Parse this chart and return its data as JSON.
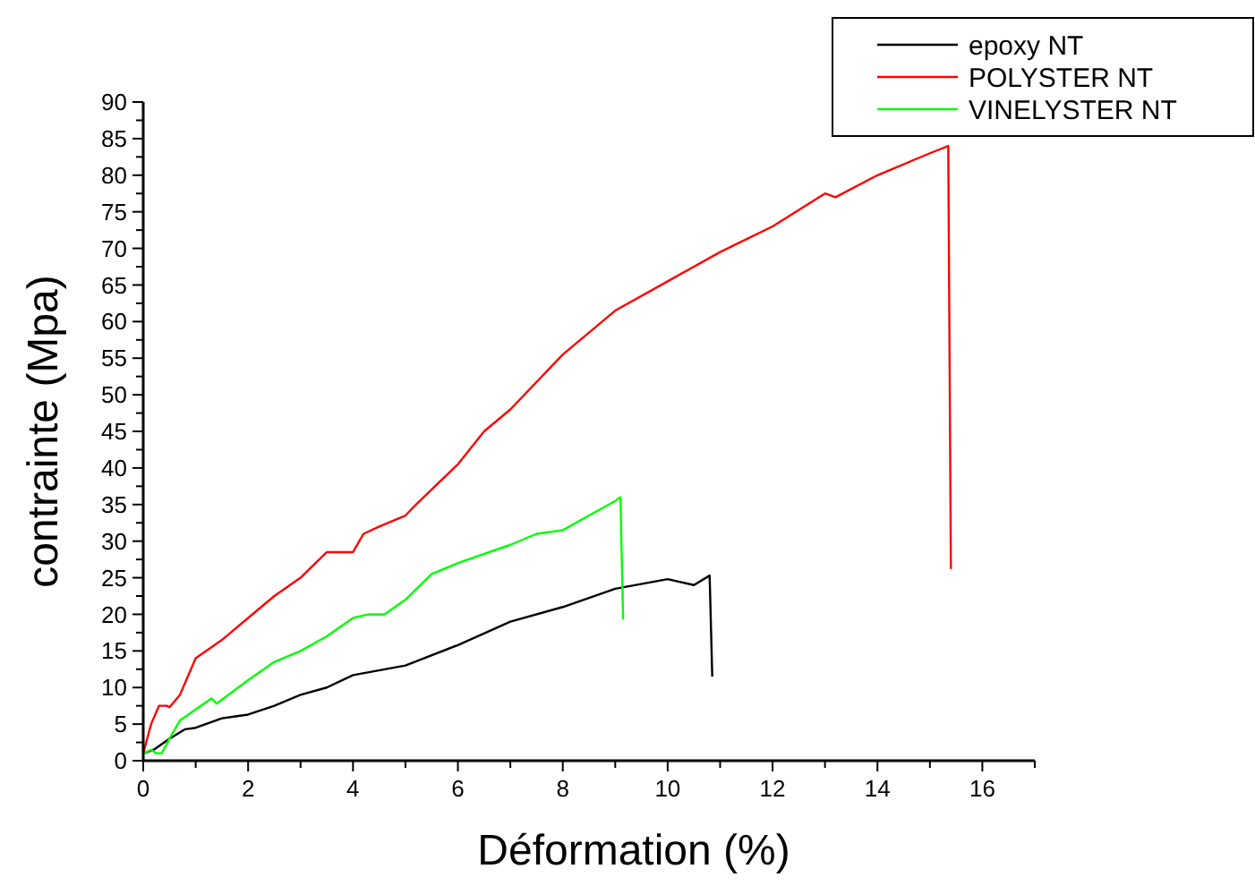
{
  "chart_data": {
    "type": "line",
    "xlabel": "Déformation (%)",
    "ylabel": "contrainte (Mpa)",
    "xlim": [
      0,
      17
    ],
    "ylim": [
      0,
      90
    ],
    "xticks": [
      0,
      {
        "value": 1,
        "label": null
      },
      2,
      {
        "value": 3,
        "label": null
      },
      4,
      {
        "value": 5,
        "label": null
      },
      6,
      {
        "value": 7,
        "label": null
      },
      8,
      {
        "value": 9,
        "label": null
      },
      10,
      {
        "value": 11,
        "label": null
      },
      12,
      {
        "value": 13,
        "label": null
      },
      14,
      {
        "value": 15,
        "label": null
      },
      16,
      {
        "value": 17,
        "label": null
      }
    ],
    "yticks": [
      0,
      {
        "value": 2.5,
        "label": null
      },
      5,
      {
        "value": 7.5,
        "label": null
      },
      10,
      {
        "value": 12.5,
        "label": null
      },
      15,
      {
        "value": 17.5,
        "label": null
      },
      20,
      {
        "value": 22.5,
        "label": null
      },
      25,
      {
        "value": 27.5,
        "label": null
      },
      30,
      {
        "value": 32.5,
        "label": null
      },
      35,
      {
        "value": 37.5,
        "label": null
      },
      40,
      {
        "value": 42.5,
        "label": null
      },
      45,
      {
        "value": 47.5,
        "label": null
      },
      50,
      {
        "value": 52.5,
        "label": null
      },
      55,
      {
        "value": 57.5,
        "label": null
      },
      60,
      {
        "value": 62.5,
        "label": null
      },
      65,
      {
        "value": 67.5,
        "label": null
      },
      70,
      {
        "value": 72.5,
        "label": null
      },
      75,
      {
        "value": 77.5,
        "label": null
      },
      80,
      {
        "value": 82.5,
        "label": null
      },
      85,
      {
        "value": 87.5,
        "label": null
      },
      90
    ],
    "grid": false,
    "legend": "top right",
    "marker": "none",
    "line_style": "solid",
    "series": [
      {
        "name": "epoxy NT",
        "color": "#000000",
        "x": [
          0,
          0.2,
          0.5,
          0.8,
          1,
          1.5,
          2,
          2.5,
          3,
          3.5,
          4,
          5,
          6,
          7,
          8,
          9,
          10,
          10.5,
          10.8,
          10.85
        ],
        "values": [
          1,
          1.5,
          3,
          4.3,
          4.5,
          5.8,
          6.3,
          7.5,
          9,
          10,
          11.7,
          13,
          15.8,
          19,
          21,
          23.5,
          24.8,
          24,
          25.3,
          11.5
        ]
      },
      {
        "name": "POLYSTER NT",
        "color": "#ff0000",
        "x": [
          0,
          0.15,
          0.3,
          0.45,
          0.5,
          0.7,
          1,
          1.3,
          1.5,
          2,
          2.5,
          3,
          3.5,
          4,
          4.2,
          4.5,
          5,
          5.2,
          6,
          6.5,
          7,
          8,
          9,
          10,
          11,
          12,
          13,
          13.2,
          14,
          15,
          15.35,
          15.4
        ],
        "values": [
          1,
          5,
          7.5,
          7.5,
          7.3,
          9,
          14,
          15.5,
          16.5,
          19.5,
          22.5,
          25,
          28.5,
          28.5,
          31,
          32,
          33.5,
          35,
          40.5,
          45,
          48,
          55.5,
          61.5,
          65.5,
          69.5,
          73,
          77.5,
          77,
          80,
          83,
          84,
          26.2
        ]
      },
      {
        "name": "VINELYSTER NT",
        "color": "#00ff00",
        "x": [
          0,
          0.15,
          0.25,
          0.35,
          0.5,
          0.7,
          1,
          1.3,
          1.4,
          2,
          2.5,
          3,
          3.5,
          4,
          4.3,
          4.6,
          5,
          5.5,
          6,
          7,
          7.5,
          8,
          8.5,
          9,
          9.1,
          9.15
        ],
        "values": [
          1,
          1.5,
          1,
          1,
          3,
          5.5,
          7,
          8.5,
          7.8,
          11,
          13.5,
          15,
          17,
          19.5,
          20,
          20,
          22,
          25.5,
          27,
          29.5,
          31,
          31.5,
          33.5,
          35.5,
          36,
          19.3
        ]
      }
    ]
  }
}
